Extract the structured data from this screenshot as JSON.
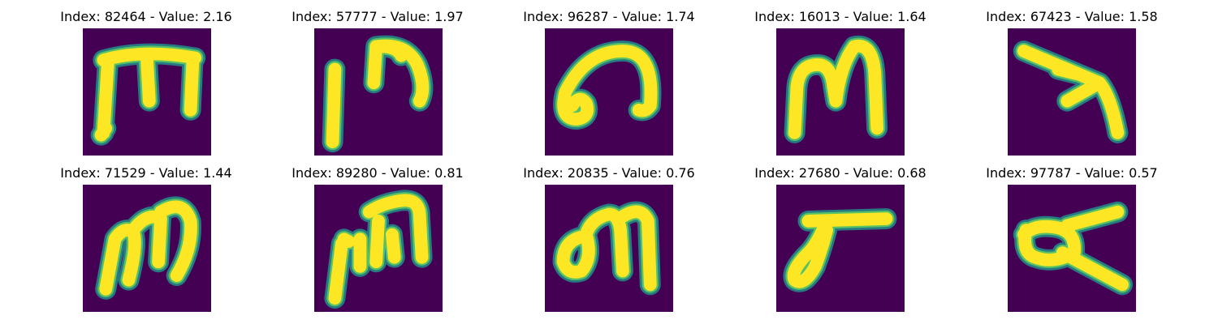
{
  "colors": {
    "background": "#440154",
    "foreground": "#fde725",
    "edge_teal": "#21918c",
    "edge_green": "#5ec962",
    "page": "#ffffff"
  },
  "colormap": "viridis",
  "grid": {
    "rows": 2,
    "cols": 5
  },
  "panels": [
    {
      "title": "Index: 82464 - Value: 2.16",
      "glyph": "m-shape-with-crossbar"
    },
    {
      "title": "Index: 57777 - Value: 1.97",
      "glyph": "stroke-and-arch"
    },
    {
      "title": "Index: 96287 - Value: 1.74",
      "glyph": "looped-arch"
    },
    {
      "title": "Index: 16013 - Value: 1.64",
      "glyph": "m-shape"
    },
    {
      "title": "Index: 67423 - Value: 1.58",
      "glyph": "slanted-stroke-with-branch"
    },
    {
      "title": "Index: 71529 - Value: 1.44",
      "glyph": "m-shape-slanted"
    },
    {
      "title": "Index: 89280 - Value: 0.81",
      "glyph": "broken-strokes"
    },
    {
      "title": "Index: 20835 - Value: 0.76",
      "glyph": "loop-and-arch"
    },
    {
      "title": "Index: 27680 - Value: 0.68",
      "glyph": "bar-with-loop"
    },
    {
      "title": "Index: 97787 - Value: 0.57",
      "glyph": "loop-with-crossing-stroke"
    }
  ]
}
